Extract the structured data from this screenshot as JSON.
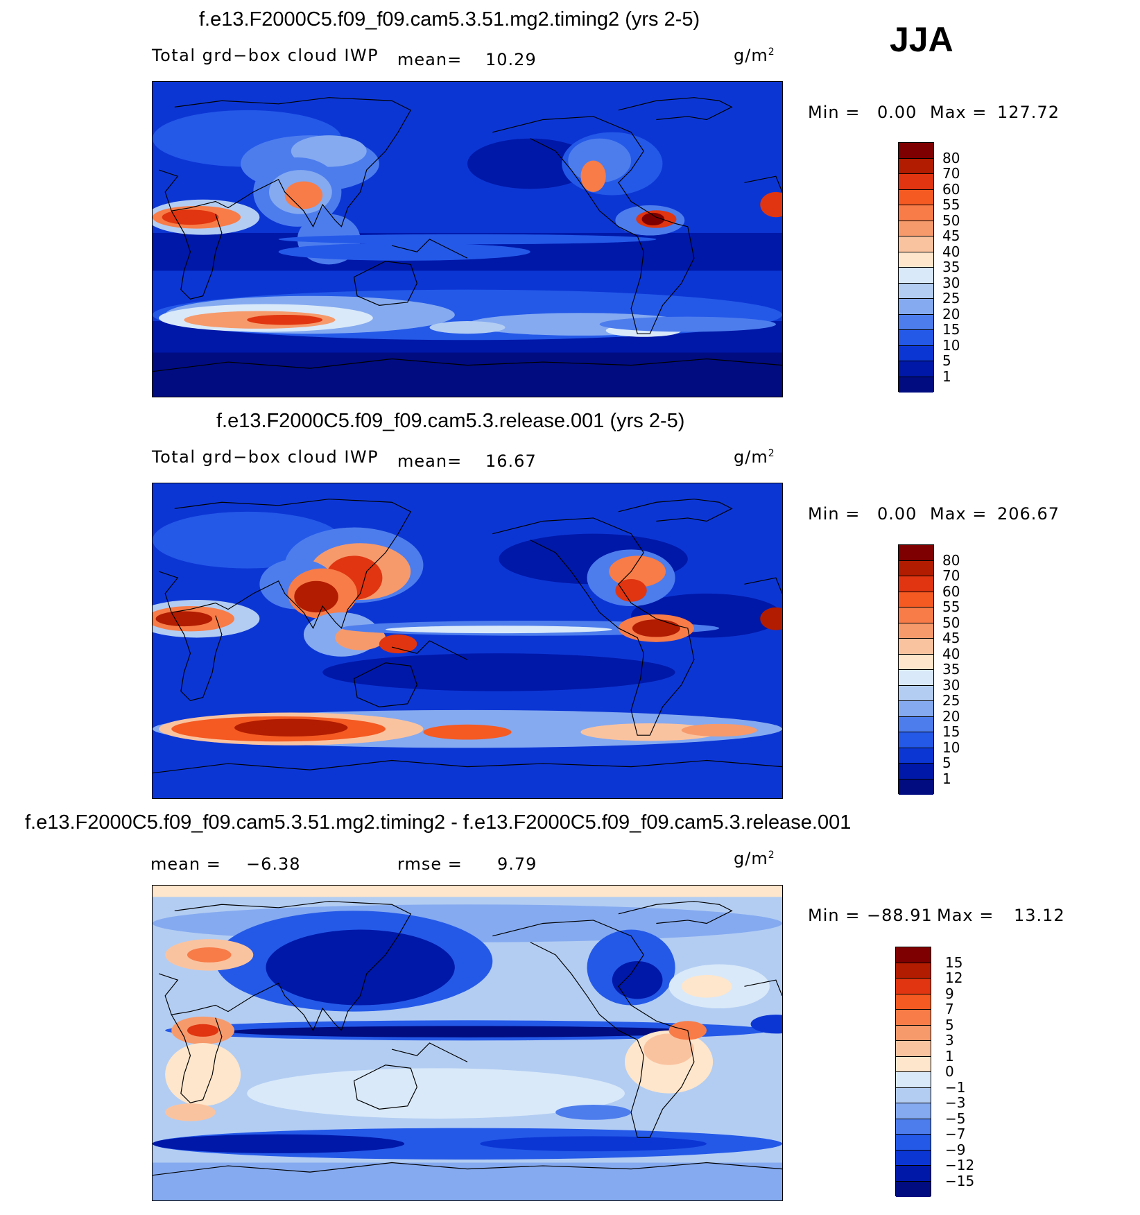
{
  "season": "JJA",
  "panels": [
    {
      "title": "f.e13.F2000C5.f09_f09.cam5.3.51.mg2.timing2 (yrs 2-5)",
      "variable": "Total grd−box cloud IWP",
      "stat1_label": "mean=",
      "stat1_value": "10.29",
      "stat2_label": "",
      "stat2_value": "",
      "units": "g/m",
      "units_sup": "2",
      "min_label": "Min =",
      "min_value": "0.00",
      "max_label": "Max =",
      "max_value": "127.72",
      "colorbar": [
        "80",
        "70",
        "60",
        "55",
        "50",
        "45",
        "40",
        "35",
        "30",
        "25",
        "20",
        "15",
        "10",
        "5",
        "1"
      ]
    },
    {
      "title": "f.e13.F2000C5.f09_f09.cam5.3.release.001 (yrs 2-5)",
      "variable": "Total grd−box cloud IWP",
      "stat1_label": "mean=",
      "stat1_value": "16.67",
      "stat2_label": "",
      "stat2_value": "",
      "units": "g/m",
      "units_sup": "2",
      "min_label": "Min =",
      "min_value": "0.00",
      "max_label": "Max =",
      "max_value": "206.67",
      "colorbar": [
        "80",
        "70",
        "60",
        "55",
        "50",
        "45",
        "40",
        "35",
        "30",
        "25",
        "20",
        "15",
        "10",
        "5",
        "1"
      ]
    },
    {
      "title": "f.e13.F2000C5.f09_f09.cam5.3.51.mg2.timing2 - f.e13.F2000C5.f09_f09.cam5.3.release.001",
      "variable": "",
      "stat1_label": "mean =",
      "stat1_value": "−6.38",
      "stat2_label": "rmse =",
      "stat2_value": "9.79",
      "units": "g/m",
      "units_sup": "2",
      "min_label": "Min =",
      "min_value": "−88.91",
      "max_label": "Max =",
      "max_value": "13.12",
      "colorbar": [
        "15",
        "12",
        "9",
        "7",
        "5",
        "3",
        "1",
        "0",
        "−1",
        "−3",
        "−5",
        "−7",
        "−9",
        "−12",
        "−15"
      ]
    }
  ],
  "palettes": {
    "absolute": [
      "#7f0000",
      "#b21c00",
      "#e03510",
      "#f45a22",
      "#f77c48",
      "#f69a6c",
      "#fac3a0",
      "#fde6cc",
      "#d9e9f9",
      "#b3cdf2",
      "#85aaf0",
      "#4d7ded",
      "#2459e8",
      "#0c36d4",
      "#0018a8",
      "#000c80"
    ],
    "difference": [
      "#7f0000",
      "#b21c00",
      "#e03510",
      "#f45a22",
      "#f77c48",
      "#f69a6c",
      "#fac3a0",
      "#fde6cc",
      "#d9e9f9",
      "#b3cdf2",
      "#85aaf0",
      "#4d7ded",
      "#2459e8",
      "#0c36d4",
      "#0018a8",
      "#000c80"
    ]
  }
}
